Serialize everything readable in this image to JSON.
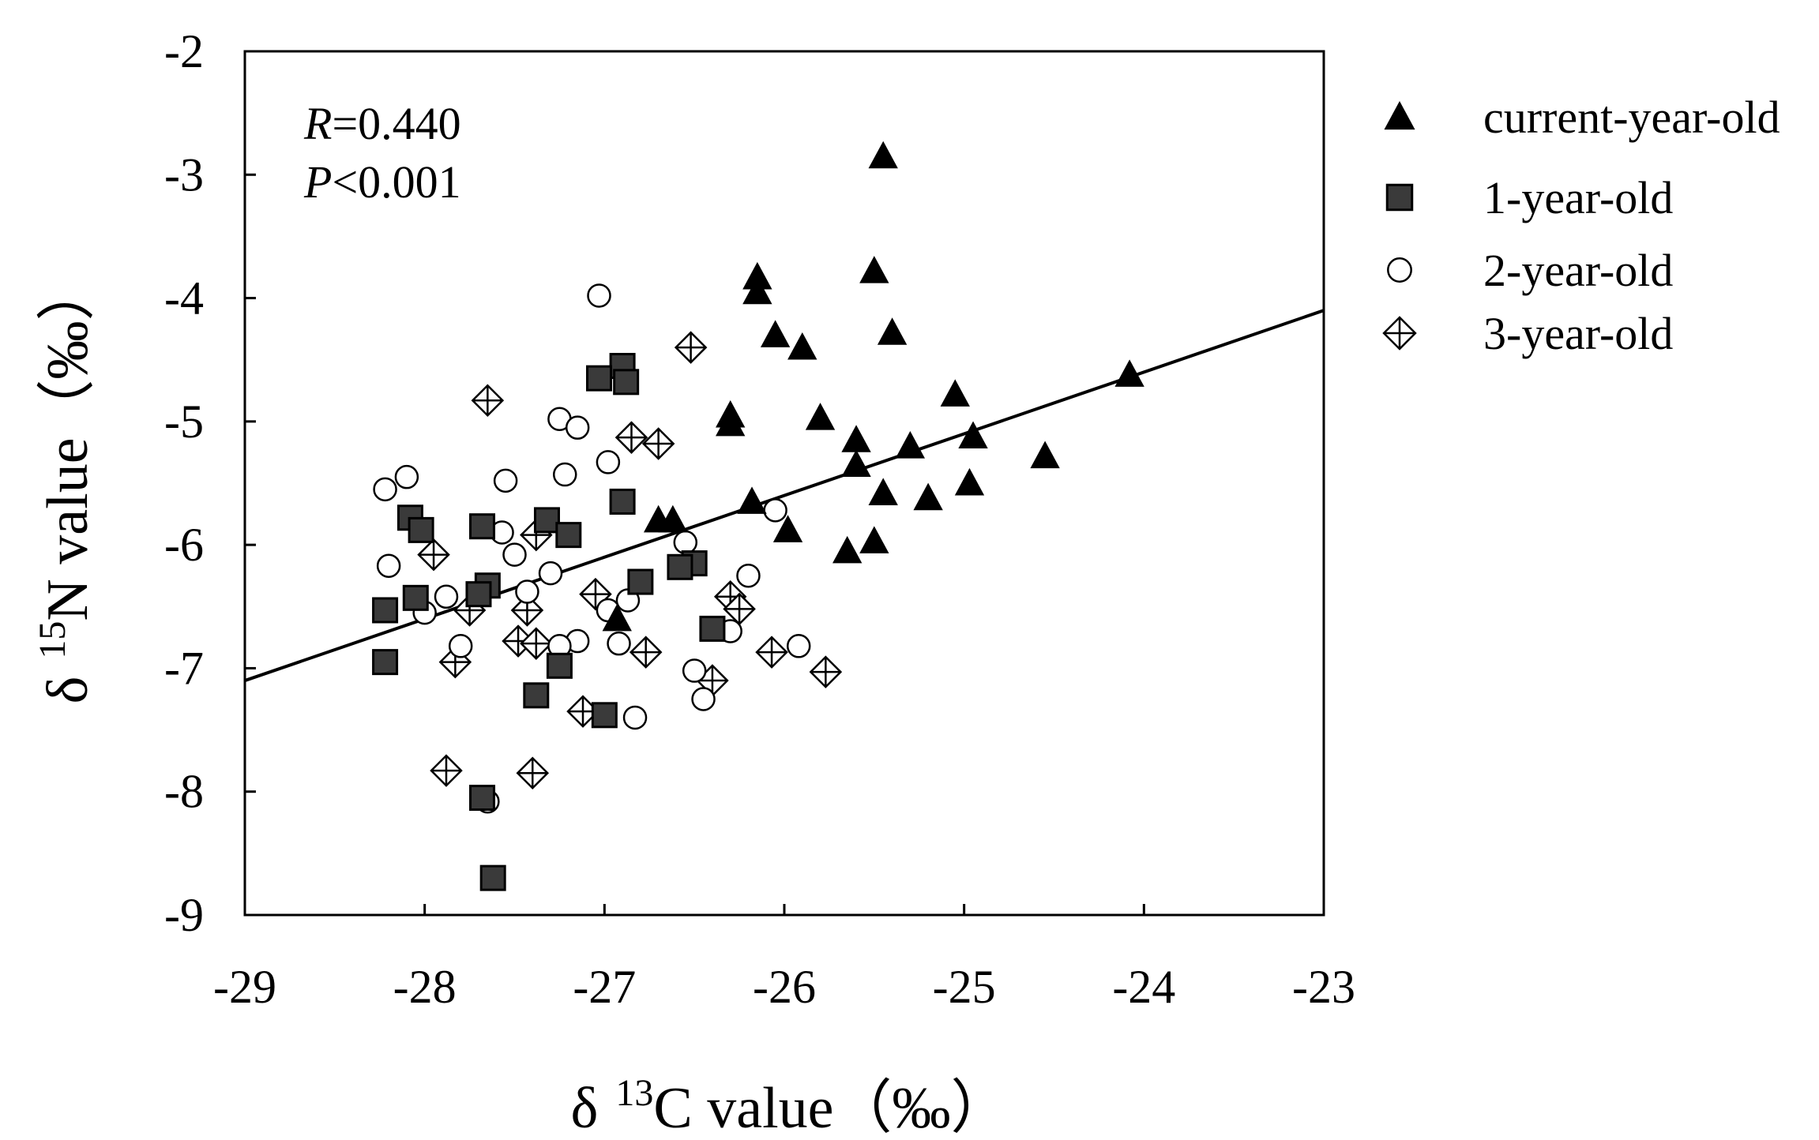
{
  "chart_data": {
    "type": "scatter",
    "title": "",
    "xlabel": {
      "prefix": "δ",
      "sup": "13",
      "main": "C value",
      "unit": "（‰）"
    },
    "ylabel": {
      "prefix": "δ",
      "sup": "15",
      "main": "N value",
      "unit": "（‰）"
    },
    "xlim": [
      -29,
      -23
    ],
    "ylim": [
      -9,
      -2
    ],
    "xticks": [
      -29,
      -28,
      -27,
      -26,
      -25,
      -24,
      -23
    ],
    "yticks": [
      -9,
      -8,
      -7,
      -6,
      -5,
      -4,
      -3,
      -2
    ],
    "grid": false,
    "legend_position": "right",
    "annotations": {
      "r_label": "R",
      "r_value": "=0.440",
      "p_label": "P",
      "p_value": "<0.001"
    },
    "regression": {
      "x": [
        -29,
        -23
      ],
      "y": [
        -7.1,
        -4.1
      ]
    },
    "series": [
      {
        "name": "current-year-old",
        "marker": "triangle",
        "color": "#000000",
        "points": [
          [
            -25.45,
            -2.85
          ],
          [
            -25.5,
            -3.78
          ],
          [
            -26.15,
            -3.83
          ],
          [
            -26.15,
            -3.95
          ],
          [
            -25.4,
            -4.28
          ],
          [
            -26.05,
            -4.3
          ],
          [
            -25.9,
            -4.4
          ],
          [
            -26.3,
            -4.95
          ],
          [
            -26.3,
            -5.02
          ],
          [
            -25.8,
            -4.97
          ],
          [
            -25.05,
            -4.78
          ],
          [
            -24.08,
            -4.62
          ],
          [
            -25.6,
            -5.15
          ],
          [
            -25.3,
            -5.2
          ],
          [
            -24.95,
            -5.12
          ],
          [
            -24.55,
            -5.28
          ],
          [
            -25.6,
            -5.35
          ],
          [
            -25.45,
            -5.58
          ],
          [
            -25.2,
            -5.62
          ],
          [
            -24.97,
            -5.5
          ],
          [
            -26.18,
            -5.65
          ],
          [
            -26.7,
            -5.8
          ],
          [
            -26.62,
            -5.8
          ],
          [
            -25.98,
            -5.88
          ],
          [
            -25.5,
            -5.97
          ],
          [
            -25.65,
            -6.05
          ],
          [
            -26.93,
            -6.6
          ]
        ]
      },
      {
        "name": "1-year-old",
        "marker": "square",
        "color": "#3a3a3a",
        "points": [
          [
            -26.9,
            -4.55
          ],
          [
            -27.03,
            -4.65
          ],
          [
            -26.88,
            -4.68
          ],
          [
            -26.9,
            -5.65
          ],
          [
            -28.08,
            -5.78
          ],
          [
            -28.02,
            -5.88
          ],
          [
            -27.68,
            -5.85
          ],
          [
            -27.32,
            -5.8
          ],
          [
            -27.2,
            -5.92
          ],
          [
            -26.5,
            -6.15
          ],
          [
            -26.58,
            -6.18
          ],
          [
            -26.8,
            -6.3
          ],
          [
            -27.65,
            -6.33
          ],
          [
            -27.7,
            -6.4
          ],
          [
            -28.05,
            -6.43
          ],
          [
            -28.22,
            -6.53
          ],
          [
            -26.4,
            -6.68
          ],
          [
            -27.25,
            -6.98
          ],
          [
            -28.22,
            -6.95
          ],
          [
            -27.38,
            -7.22
          ],
          [
            -27.0,
            -7.38
          ],
          [
            -27.68,
            -8.05
          ],
          [
            -27.62,
            -8.7
          ]
        ]
      },
      {
        "name": "2-year-old",
        "marker": "circle",
        "color": "#ffffff",
        "points": [
          [
            -27.03,
            -3.98
          ],
          [
            -27.25,
            -4.98
          ],
          [
            -27.15,
            -5.05
          ],
          [
            -26.98,
            -5.33
          ],
          [
            -27.22,
            -5.43
          ],
          [
            -28.1,
            -5.45
          ],
          [
            -27.55,
            -5.48
          ],
          [
            -28.22,
            -5.55
          ],
          [
            -26.05,
            -5.72
          ],
          [
            -26.55,
            -5.98
          ],
          [
            -27.5,
            -6.08
          ],
          [
            -28.2,
            -6.17
          ],
          [
            -27.3,
            -6.23
          ],
          [
            -26.2,
            -6.25
          ],
          [
            -26.87,
            -6.45
          ],
          [
            -27.88,
            -6.42
          ],
          [
            -28.0,
            -6.55
          ],
          [
            -26.98,
            -6.53
          ],
          [
            -27.43,
            -6.38
          ],
          [
            -26.3,
            -6.7
          ],
          [
            -27.15,
            -6.78
          ],
          [
            -27.25,
            -6.82
          ],
          [
            -26.92,
            -6.8
          ],
          [
            -27.8,
            -6.82
          ],
          [
            -25.92,
            -6.82
          ],
          [
            -26.5,
            -7.02
          ],
          [
            -26.45,
            -7.25
          ],
          [
            -26.83,
            -7.4
          ],
          [
            -27.65,
            -8.08
          ],
          [
            -27.57,
            -5.9
          ]
        ]
      },
      {
        "name": "3-year-old",
        "marker": "diamond-cross",
        "color": "#ffffff",
        "points": [
          [
            -26.52,
            -4.4
          ],
          [
            -27.65,
            -4.83
          ],
          [
            -26.85,
            -5.13
          ],
          [
            -26.7,
            -5.18
          ],
          [
            -27.38,
            -5.92
          ],
          [
            -27.95,
            -6.08
          ],
          [
            -27.75,
            -6.53
          ],
          [
            -27.43,
            -6.53
          ],
          [
            -26.3,
            -6.42
          ],
          [
            -26.25,
            -6.52
          ],
          [
            -27.05,
            -6.4
          ],
          [
            -27.48,
            -6.78
          ],
          [
            -27.38,
            -6.8
          ],
          [
            -26.77,
            -6.87
          ],
          [
            -26.07,
            -6.87
          ],
          [
            -27.83,
            -6.95
          ],
          [
            -25.77,
            -7.03
          ],
          [
            -26.4,
            -7.1
          ],
          [
            -27.12,
            -7.35
          ],
          [
            -27.88,
            -7.83
          ],
          [
            -27.4,
            -7.85
          ]
        ]
      }
    ]
  }
}
